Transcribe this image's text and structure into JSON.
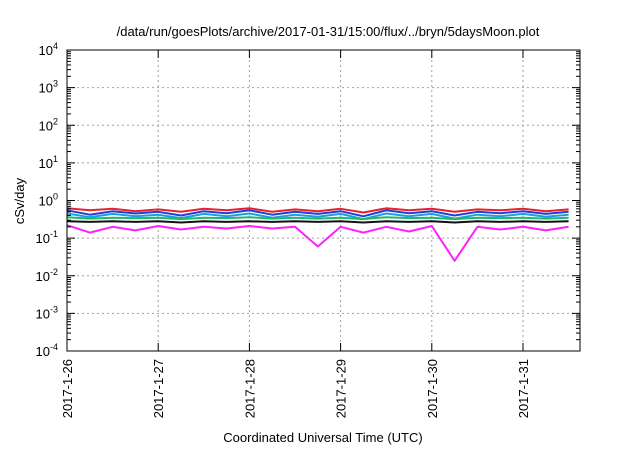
{
  "chart_data": {
    "type": "line",
    "title": "/data/run/goesPlots/archive/2017-01-31/15:00/flux/../bryn/5daysMoon.plot",
    "xlabel": "Coordinated Universal Time (UTC)",
    "ylabel": "cSv/day",
    "yscale": "log",
    "ylim": [
      0.0001,
      10000
    ],
    "xlim": [
      "2017-01-26T00:00",
      "2017-01-31T15:00"
    ],
    "grid": true,
    "legend": "none",
    "x_ticks": [
      "2017-1-26",
      "2017-1-27",
      "2017-1-28",
      "2017-1-29",
      "2017-1-30",
      "2017-1-31"
    ],
    "y_ticks": [
      {
        "value": 0.0001,
        "mantissa": "10",
        "exp": "-4"
      },
      {
        "value": 0.001,
        "mantissa": "10",
        "exp": "-3"
      },
      {
        "value": 0.01,
        "mantissa": "10",
        "exp": "-2"
      },
      {
        "value": 0.1,
        "mantissa": "10",
        "exp": "-1"
      },
      {
        "value": 1,
        "mantissa": "10",
        "exp": "0"
      },
      {
        "value": 10,
        "mantissa": "10",
        "exp": "1"
      },
      {
        "value": 100,
        "mantissa": "10",
        "exp": "2"
      },
      {
        "value": 1000,
        "mantissa": "10",
        "exp": "3"
      },
      {
        "value": 10000,
        "mantissa": "10",
        "exp": "4"
      }
    ],
    "x": [
      "2017-01-26T00:00",
      "2017-01-26T06:00",
      "2017-01-26T12:00",
      "2017-01-26T18:00",
      "2017-01-27T00:00",
      "2017-01-27T06:00",
      "2017-01-27T12:00",
      "2017-01-27T18:00",
      "2017-01-28T00:00",
      "2017-01-28T06:00",
      "2017-01-28T12:00",
      "2017-01-28T18:00",
      "2017-01-29T00:00",
      "2017-01-29T06:00",
      "2017-01-29T12:00",
      "2017-01-29T18:00",
      "2017-01-30T00:00",
      "2017-01-30T06:00",
      "2017-01-30T12:00",
      "2017-01-30T18:00",
      "2017-01-31T00:00",
      "2017-01-31T06:00",
      "2017-01-31T12:00"
    ],
    "series": [
      {
        "color": "#e8202a",
        "values": [
          0.62,
          0.55,
          0.6,
          0.52,
          0.58,
          0.5,
          0.6,
          0.55,
          0.62,
          0.5,
          0.58,
          0.52,
          0.6,
          0.48,
          0.62,
          0.55,
          0.6,
          0.5,
          0.58,
          0.55,
          0.6,
          0.52,
          0.58
        ]
      },
      {
        "color": "#1f3fd8",
        "values": [
          0.55,
          0.42,
          0.52,
          0.45,
          0.5,
          0.4,
          0.52,
          0.46,
          0.55,
          0.42,
          0.5,
          0.44,
          0.52,
          0.38,
          0.55,
          0.46,
          0.52,
          0.4,
          0.5,
          0.46,
          0.52,
          0.44,
          0.5
        ]
      },
      {
        "color": "#1aa0dc",
        "values": [
          0.45,
          0.36,
          0.44,
          0.38,
          0.42,
          0.34,
          0.44,
          0.38,
          0.45,
          0.35,
          0.42,
          0.37,
          0.44,
          0.32,
          0.45,
          0.38,
          0.44,
          0.33,
          0.42,
          0.38,
          0.44,
          0.37,
          0.42
        ]
      },
      {
        "color": "#20b86a",
        "values": [
          0.36,
          0.33,
          0.35,
          0.34,
          0.35,
          0.32,
          0.35,
          0.34,
          0.36,
          0.33,
          0.35,
          0.33,
          0.35,
          0.32,
          0.36,
          0.34,
          0.35,
          0.32,
          0.35,
          0.34,
          0.35,
          0.33,
          0.35
        ]
      },
      {
        "color": "#111111",
        "values": [
          0.28,
          0.27,
          0.28,
          0.27,
          0.28,
          0.26,
          0.28,
          0.27,
          0.28,
          0.27,
          0.28,
          0.27,
          0.28,
          0.26,
          0.28,
          0.27,
          0.28,
          0.26,
          0.28,
          0.27,
          0.28,
          0.27,
          0.28
        ]
      },
      {
        "color": "#ff20ff",
        "values": [
          0.22,
          0.14,
          0.2,
          0.16,
          0.21,
          0.17,
          0.2,
          0.18,
          0.21,
          0.18,
          0.2,
          0.06,
          0.2,
          0.14,
          0.2,
          0.15,
          0.21,
          0.025,
          0.2,
          0.17,
          0.2,
          0.16,
          0.2
        ]
      }
    ]
  }
}
